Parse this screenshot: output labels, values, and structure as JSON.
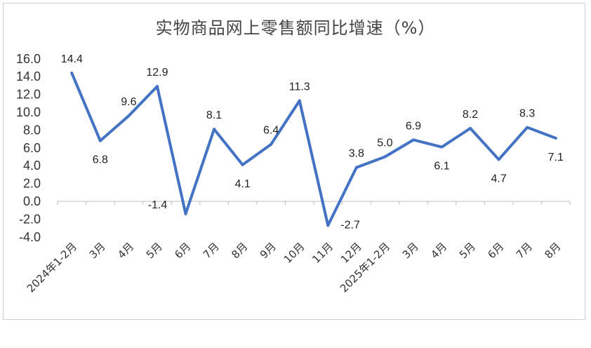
{
  "chart_data": {
    "type": "line",
    "title": "实物商品网上零售额同比增速（%）",
    "xlabel": "",
    "ylabel": "",
    "categories": [
      "2024年1-2月",
      "3月",
      "4月",
      "5月",
      "6月",
      "7月",
      "8月",
      "9月",
      "10月",
      "11月",
      "12月",
      "2025年1-2月",
      "3月",
      "4月",
      "5月",
      "6月",
      "7月",
      "8月"
    ],
    "values": [
      14.4,
      6.8,
      9.6,
      12.9,
      -1.4,
      8.1,
      4.1,
      6.4,
      11.3,
      -2.7,
      3.8,
      5.0,
      6.9,
      6.1,
      8.2,
      4.7,
      8.3,
      7.1
    ],
    "data_labels": [
      "14.4",
      "6.8",
      "9.6",
      "12.9",
      "-1.4",
      "8.1",
      "4.1",
      "6.4",
      "11.3",
      "-2.7",
      "3.8",
      "5.0",
      "6.9",
      "6.1",
      "8.2",
      "4.7",
      "8.3",
      "7.1"
    ],
    "yticks": [
      "-4.0",
      "-2.0",
      "0.0",
      "2.0",
      "4.0",
      "6.0",
      "8.0",
      "10.0",
      "12.0",
      "14.0",
      "16.0"
    ],
    "ylim": [
      -4,
      16
    ],
    "grid": false,
    "legend": "none",
    "line_color": "#4472C4"
  }
}
